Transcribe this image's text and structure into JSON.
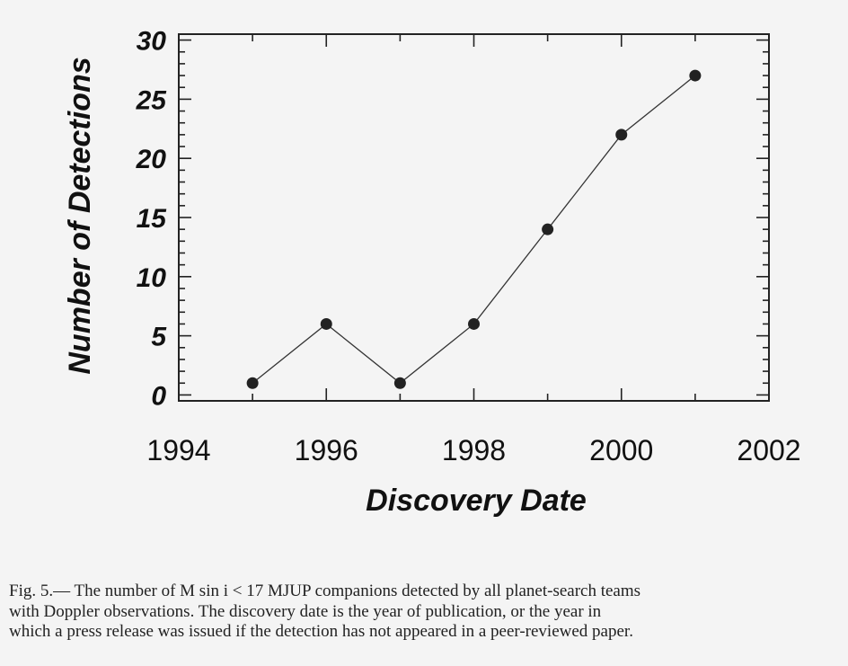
{
  "chart_data": {
    "type": "line",
    "title": "",
    "xlabel": "Discovery Date",
    "ylabel": "Number of Detections",
    "x": [
      1995,
      1996,
      1997,
      1998,
      1999,
      2000,
      2001
    ],
    "series": [
      {
        "values": [
          1,
          6,
          1,
          6,
          14,
          22,
          27
        ]
      }
    ],
    "xlim": [
      1994,
      2002
    ],
    "ylim": [
      -0.5,
      30.5
    ],
    "xticks": [
      1994,
      1996,
      1998,
      2000,
      2002
    ],
    "yticks": [
      0,
      5,
      10,
      15,
      20,
      25,
      30
    ],
    "x_tick_labels": [
      "1994",
      "1996",
      "1998",
      "2000",
      "2002"
    ],
    "y_tick_labels": [
      "0",
      "5",
      "10",
      "15",
      "20",
      "25",
      "30"
    ],
    "grid": false,
    "legend": "none",
    "colors": {
      "line": "#333333",
      "marker": "#222222",
      "axis": "#222222"
    }
  },
  "caption": {
    "line1": "Fig. 5.— The number of M sin i < 17 MJUP companions detected by all planet-search teams",
    "line2": "with Doppler observations.  The discovery date is the year of publication, or the year in",
    "line3": "which a press release was issued if the detection has not appeared in a peer-reviewed paper."
  }
}
